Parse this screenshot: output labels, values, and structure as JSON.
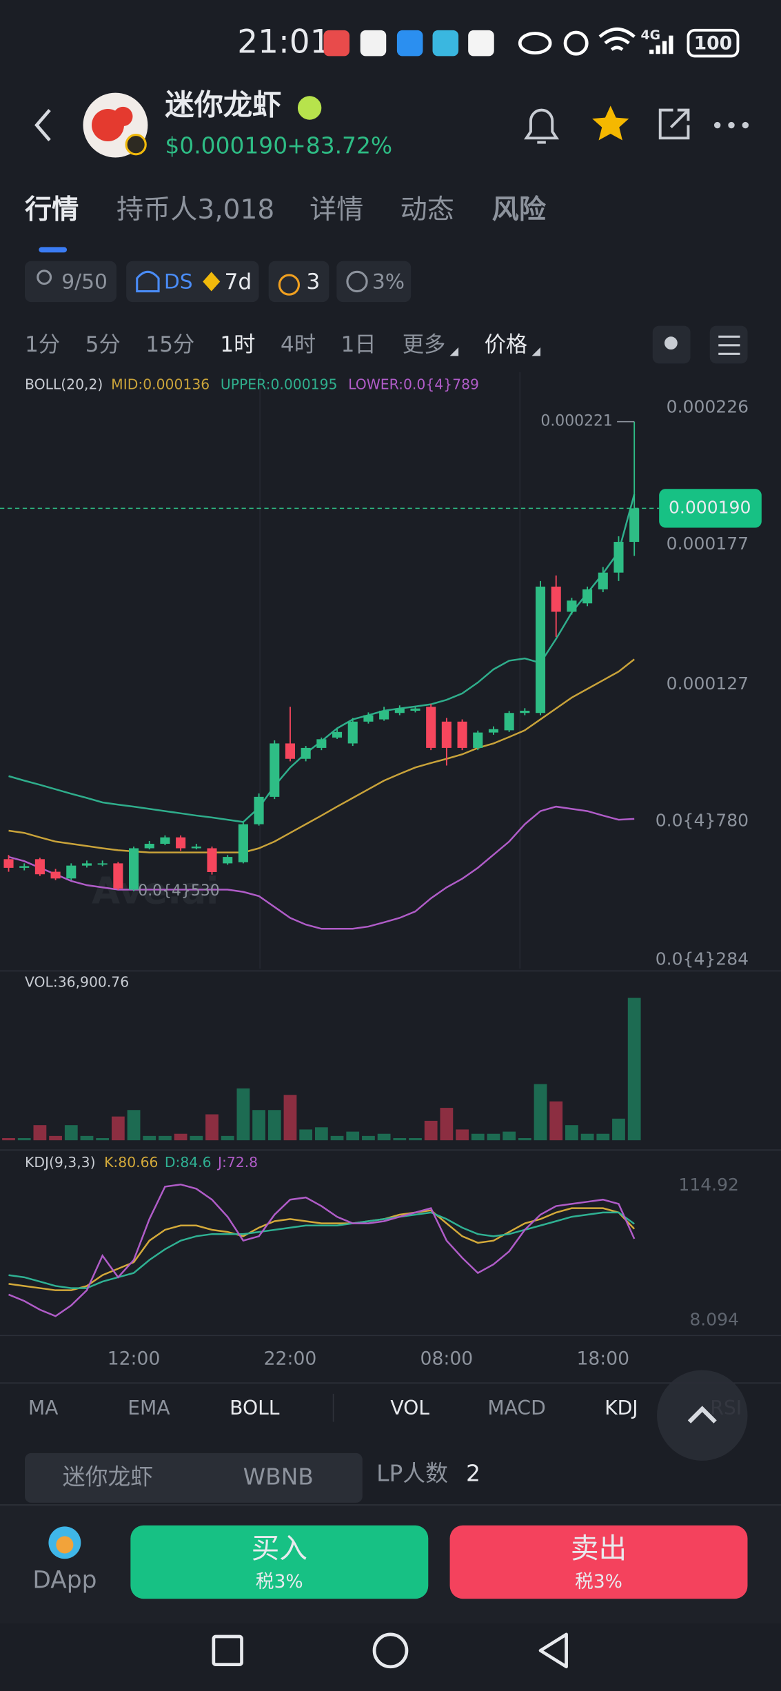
{
  "status_bar": {
    "time": "21:01",
    "network": "4G",
    "battery": "100"
  },
  "header": {
    "name": "迷你龙虾",
    "price": "$0.000190",
    "change": "+83.72%"
  },
  "tabs": [
    "行情",
    "持币人3,018",
    "详情",
    "动态",
    "风险"
  ],
  "badges": {
    "holders": "9/50",
    "dex": "DS",
    "age": "7d",
    "bags": "3",
    "tax": "3%"
  },
  "intervals": [
    "1分",
    "5分",
    "15分",
    "1时",
    "4时",
    "1日",
    "更多",
    "价格"
  ],
  "watermark": "Ave.ai",
  "chart_data": [
    {
      "type": "candlestick",
      "legend_title": "BOLL(20,2)",
      "categories": [
        null,
        null,
        null,
        null,
        null,
        null,
        null,
        null,
        "12:00",
        null,
        null,
        null,
        null,
        null,
        null,
        null,
        null,
        null,
        "22:00",
        null,
        null,
        null,
        null,
        null,
        null,
        null,
        null,
        null,
        "08:00",
        null,
        null,
        null,
        null,
        null,
        null,
        null,
        null,
        null,
        "18:00",
        null,
        null
      ],
      "open": [
        6.45e-05,
        6.14e-05,
        6.45e-05,
        6e-05,
        5.76e-05,
        6.22e-05,
        6.3e-05,
        6.3e-05,
        5.36e-05,
        6.84e-05,
        7e-05,
        7.23e-05,
        6.84e-05,
        6.84e-05,
        6.3e-05,
        6.34e-05,
        7.7e-05,
        8.68e-05,
        0.0001059,
        0.0001004,
        0.0001043,
        0.000108,
        0.0001059,
        0.0001137,
        0.0001145,
        0.0001168,
        0.0001176,
        0.000119,
        0.0001137,
        0.0001137,
        0.0001043,
        0.0001098,
        0.0001106,
        0.0001168,
        0.0001168,
        0.000162,
        0.000153,
        0.000156,
        0.000161,
        0.000167,
        0.000178
      ],
      "high": [
        6.6e-05,
        6.3e-05,
        6.5e-05,
        6.1e-05,
        6.3e-05,
        6.4e-05,
        6.4e-05,
        6.35e-05,
        6.9e-05,
        7.1e-05,
        7.3e-05,
        7.3e-05,
        7e-05,
        6.9e-05,
        6.6e-05,
        7.8e-05,
        8.8e-05,
        0.000107,
        0.000119,
        0.000105,
        0.000108,
        0.000111,
        0.000115,
        0.000117,
        0.000119,
        0.0001195,
        0.000119,
        0.00012,
        0.000115,
        0.0001145,
        0.0001105,
        0.000112,
        0.0001175,
        0.0001185,
        0.000164,
        0.000166,
        0.000158,
        0.000162,
        0.000169,
        0.00018,
        0.000221
      ],
      "low": [
        6e-05,
        6.05e-05,
        5.85e-05,
        5.7e-05,
        5.7e-05,
        6.15e-05,
        6.2e-05,
        5.35e-05,
        5.3e-05,
        6.8e-05,
        6.95e-05,
        6.75e-05,
        6.8e-05,
        5.9e-05,
        6.25e-05,
        6.3e-05,
        7.65e-05,
        8.6e-05,
        9.95e-05,
        9.95e-05,
        0.0001035,
        0.0001075,
        0.000105,
        0.000113,
        0.000114,
        0.000116,
        0.000117,
        0.0001035,
        9.8e-05,
        0.0001035,
        0.0001035,
        0.000109,
        0.00011,
        0.000116,
        0.000116,
        0.000144,
        0.000152,
        0.000155,
        0.00016,
        0.000164,
        0.000173
      ],
      "close": [
        6.14e-05,
        6.2e-05,
        5.91e-05,
        5.76e-05,
        6.22e-05,
        6.3e-05,
        6.3e-05,
        5.4e-05,
        6.84e-05,
        7e-05,
        7.23e-05,
        6.84e-05,
        6.9e-05,
        5.99e-05,
        6.53e-05,
        7.7e-05,
        8.68e-05,
        0.0001059,
        0.0001004,
        0.0001043,
        0.0001074,
        0.00011,
        0.0001137,
        0.000116,
        0.0001176,
        0.0001184,
        0.0001184,
        0.0001043,
        0.0001043,
        0.0001043,
        0.0001098,
        0.000111,
        0.0001168,
        0.0001176,
        0.000162,
        0.000153,
        0.000157,
        0.000161,
        0.000167,
        0.000178,
        0.00019
      ],
      "color_up": "#2ebd85",
      "color_down": "#f6465d",
      "series": [
        {
          "name": "MID:0.000136",
          "color": "#c9a33a",
          "values": [
            7.47e-05,
            7.39e-05,
            7.23e-05,
            7.08e-05,
            7e-05,
            6.92e-05,
            6.84e-05,
            6.77e-05,
            6.73e-05,
            6.69e-05,
            6.69e-05,
            6.69e-05,
            6.69e-05,
            6.69e-05,
            6.69e-05,
            6.69e-05,
            6.84e-05,
            7.08e-05,
            7.39e-05,
            7.7e-05,
            8.01e-05,
            8.33e-05,
            8.64e-05,
            8.95e-05,
            9.26e-05,
            9.5e-05,
            9.73e-05,
            9.89e-05,
            0.0001004,
            0.000102,
            0.0001043,
            0.0001059,
            0.0001082,
            0.0001106,
            0.0001145,
            0.0001184,
            0.0001223,
            0.0001254,
            0.0001285,
            0.0001316,
            0.000136
          ]
        },
        {
          "name": "UPPER:0.000195",
          "color": "#2fae8c",
          "values": [
            9.42e-05,
            9.26e-05,
            9.11e-05,
            8.95e-05,
            8.79e-05,
            8.64e-05,
            8.48e-05,
            8.4e-05,
            8.33e-05,
            8.25e-05,
            8.17e-05,
            8.09e-05,
            8.01e-05,
            7.94e-05,
            7.86e-05,
            7.78e-05,
            8.29e-05,
            9.07e-05,
            9.73e-05,
            0.0001024,
            0.0001067,
            0.0001113,
            0.0001145,
            0.000116,
            0.0001176,
            0.0001184,
            0.0001191,
            0.0001199,
            0.0001215,
            0.0001238,
            0.0001277,
            0.0001324,
            0.0001355,
            0.0001363,
            0.0001347,
            0.0001433,
            0.0001527,
            0.0001597,
            0.0001667,
            0.0001745,
            0.000195
          ]
        },
        {
          "name": "LOWER:0.0{4}789",
          "color": "#b05cc8",
          "values": [
            6.53e-05,
            6.38e-05,
            6.14e-05,
            5.91e-05,
            5.67e-05,
            5.52e-05,
            5.44e-05,
            5.36e-05,
            5.36e-05,
            5.36e-05,
            5.36e-05,
            5.36e-05,
            5.36e-05,
            5.36e-05,
            5.36e-05,
            5.28e-05,
            5.13e-05,
            4.74e-05,
            4.35e-05,
            4.11e-05,
            3.96e-05,
            3.96e-05,
            3.96e-05,
            4.04e-05,
            4.19e-05,
            4.35e-05,
            4.58e-05,
            5.05e-05,
            5.44e-05,
            5.75e-05,
            6.14e-05,
            6.61e-05,
            7.08e-05,
            7.7e-05,
            8.17e-05,
            8.33e-05,
            8.25e-05,
            8.17e-05,
            8.01e-05,
            7.86e-05,
            7.89e-05
          ]
        }
      ],
      "ylim": [
        2.53e-05,
        0.0002387
      ],
      "yticks": [
        0.000226,
        0.000177,
        0.000127,
        {
          "value": 7.8e-05,
          "label": "0.0{4}780"
        },
        {
          "value": 2.84e-05,
          "label": "0.0{4}284"
        }
      ],
      "last_price": {
        "value": 0.00019,
        "label": "0.000190"
      },
      "high_marker": 0.000221,
      "low_marker": {
        "value": 5.3e-05,
        "label": "0.0{4}530"
      },
      "grid": false
    },
    {
      "type": "bar",
      "title": "VOL:36,900.76",
      "up_color": "#1d6b52",
      "down_color": "#8c2e41",
      "values": [
        560,
        560,
        3920,
        1120,
        3920,
        1120,
        560,
        6160,
        7840,
        1120,
        1120,
        1680,
        1120,
        6720,
        1120,
        13440,
        7840,
        7840,
        11760,
        2800,
        3360,
        1120,
        2240,
        1120,
        1680,
        560,
        560,
        5040,
        8400,
        2800,
        1680,
        1680,
        2240,
        560,
        14560,
        10080,
        3920,
        1680,
        1680,
        5600,
        36900.76
      ],
      "ylim": [
        0,
        38300
      ]
    },
    {
      "type": "line",
      "title": "KDJ(9,3,3)",
      "series": [
        {
          "name": "K:80.66",
          "color": "#d4aa3a",
          "values": [
            37.1,
            35.4,
            33.7,
            32.0,
            32.0,
            35.4,
            44.0,
            49.1,
            54.2,
            71.3,
            79.9,
            83.3,
            83.3,
            79.9,
            78.2,
            74.8,
            81.6,
            86.7,
            88.4,
            86.7,
            85.0,
            85.0,
            85.0,
            86.7,
            88.4,
            91.9,
            93.6,
            95.3,
            85.0,
            74.8,
            69.6,
            71.3,
            78.2,
            85.0,
            88.4,
            93.6,
            97.0,
            97.0,
            97.0,
            93.6,
            80.66
          ]
        },
        {
          "name": "D:84.6",
          "color": "#2fb193",
          "values": [
            44.0,
            42.3,
            38.9,
            35.4,
            33.7,
            33.7,
            38.9,
            42.3,
            45.7,
            56.0,
            64.5,
            71.3,
            74.8,
            76.5,
            76.5,
            76.5,
            78.2,
            79.9,
            81.6,
            83.3,
            83.3,
            83.3,
            85.0,
            86.7,
            88.4,
            90.2,
            91.9,
            93.6,
            88.4,
            81.6,
            76.5,
            74.8,
            76.5,
            79.9,
            83.3,
            86.7,
            90.2,
            91.9,
            93.6,
            93.6,
            84.6
          ]
        },
        {
          "name": "J:72.8",
          "color": "#b05cc8",
          "values": [
            28.6,
            23.5,
            16.6,
            11.5,
            20.0,
            32.0,
            59.4,
            42.3,
            56.0,
            88.4,
            114.1,
            115.8,
            112.4,
            103.8,
            90.2,
            71.3,
            74.8,
            91.9,
            103.8,
            105.5,
            98.7,
            90.2,
            85.0,
            85.0,
            86.7,
            90.2,
            93.6,
            97.0,
            71.3,
            57.7,
            45.7,
            52.5,
            62.8,
            79.9,
            91.9,
            98.7,
            100.4,
            102.1,
            103.8,
            100.4,
            72.8
          ]
        }
      ],
      "ylim": [
        -1.3,
        139.7
      ],
      "yticks": [
        114.92,
        8.094
      ]
    }
  ],
  "indicators": [
    "MA",
    "EMA",
    "BOLL",
    "VOL",
    "MACD",
    "KDJ",
    "RSI"
  ],
  "pair": {
    "base": "迷你龙虾",
    "quote": "WBNB",
    "lp_label": "LP人数",
    "lp_count": "2"
  },
  "actions": {
    "dapp": "DApp",
    "buy": "买入",
    "buy_tax": "税3%",
    "sell": "卖出",
    "sell_tax": "税3%"
  }
}
